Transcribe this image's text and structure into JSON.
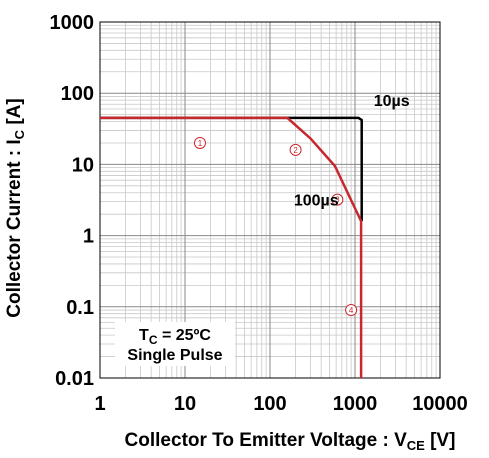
{
  "chart_data": {
    "type": "line",
    "x_scale": "log",
    "y_scale": "log",
    "xlim": [
      1,
      10000
    ],
    "ylim": [
      0.01,
      1000
    ],
    "grid": true,
    "xlabel": {
      "main": "Collector To Emitter Voltage : V",
      "sub": "CE",
      "unit": " [V]"
    },
    "ylabel": {
      "main": "Collector Current : I",
      "sub": "C",
      "unit": " [A]"
    },
    "x_ticks": [
      {
        "value": 1,
        "label": "1"
      },
      {
        "value": 10,
        "label": "10"
      },
      {
        "value": 100,
        "label": "100"
      },
      {
        "value": 1000,
        "label": "1000"
      },
      {
        "value": 10000,
        "label": "10000"
      }
    ],
    "y_ticks": [
      {
        "value": 1000,
        "label": "1000"
      },
      {
        "value": 100,
        "label": "100"
      },
      {
        "value": 10,
        "label": "10"
      },
      {
        "value": 1,
        "label": "1"
      },
      {
        "value": 0.1,
        "label": "0.1"
      },
      {
        "value": 0.01,
        "label": "0.01"
      }
    ],
    "series": [
      {
        "name": "10µs",
        "color": "#000000",
        "points": [
          [
            1,
            45
          ],
          [
            1100,
            45
          ],
          [
            1200,
            42
          ],
          [
            1200,
            1.6
          ]
        ]
      },
      {
        "name": "100µs",
        "color": "#c8282d",
        "points": [
          [
            1,
            45
          ],
          [
            160,
            45
          ],
          [
            300,
            23
          ],
          [
            580,
            9.5
          ],
          [
            1180,
            1.6
          ],
          [
            1180,
            0.01
          ]
        ]
      }
    ],
    "annotations": [
      {
        "text": "10µs",
        "x": 2700,
        "y": 80
      },
      {
        "text": "100µs",
        "x": 350,
        "y": 3.2
      }
    ],
    "legend_box": {
      "line1_main": "T",
      "line1_sub": "C",
      "line1_rest": " = 25ºC",
      "line2": "Single Pulse"
    },
    "regions": [
      {
        "label": "1",
        "x": 15,
        "y": 20
      },
      {
        "label": "2",
        "x": 200,
        "y": 16
      },
      {
        "label": "3",
        "x": 620,
        "y": 3.2
      },
      {
        "label": "4",
        "x": 900,
        "y": 0.09
      }
    ]
  }
}
